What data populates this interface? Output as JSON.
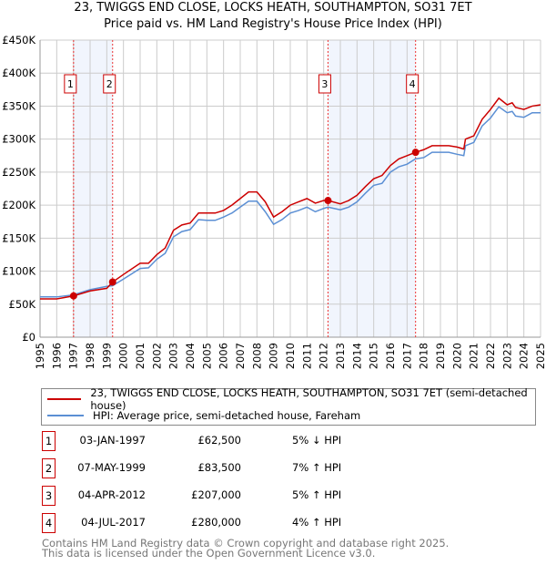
{
  "chart_data": {
    "type": "line",
    "title": "23, TWIGGS END CLOSE, LOCKS HEATH, SOUTHAMPTON, SO31 7ET",
    "subtitle": "Price paid vs. HM Land Registry's House Price Index (HPI)",
    "xlim": [
      1995,
      2025
    ],
    "ylim": [
      0,
      450000
    ],
    "grid": true,
    "x_ticks": [
      "1995",
      "1996",
      "1997",
      "1998",
      "1999",
      "2000",
      "2001",
      "2002",
      "2003",
      "2004",
      "2005",
      "2006",
      "2007",
      "2008",
      "2009",
      "2010",
      "2011",
      "2012",
      "2013",
      "2014",
      "2015",
      "2016",
      "2017",
      "2018",
      "2019",
      "2020",
      "2021",
      "2022",
      "2023",
      "2024",
      "2025"
    ],
    "y_ticks": [
      {
        "value": 0,
        "label": "£0"
      },
      {
        "value": 50000,
        "label": "£50K"
      },
      {
        "value": 100000,
        "label": "£100K"
      },
      {
        "value": 150000,
        "label": "£150K"
      },
      {
        "value": 200000,
        "label": "£200K"
      },
      {
        "value": 250000,
        "label": "£250K"
      },
      {
        "value": 300000,
        "label": "£300K"
      },
      {
        "value": 350000,
        "label": "£350K"
      },
      {
        "value": 400000,
        "label": "£400K"
      },
      {
        "value": 450000,
        "label": "£450K"
      }
    ],
    "x": [
      1995,
      1996,
      1997,
      1998,
      1999,
      1999.35,
      2000,
      2001,
      2001.5,
      2002,
      2002.5,
      2003,
      2003.5,
      2004,
      2004.5,
      2005,
      2005.5,
      2006,
      2006.5,
      2007,
      2007.5,
      2008,
      2008.5,
      2009,
      2009.5,
      2010,
      2010.5,
      2011,
      2011.5,
      2012,
      2012.26,
      2013,
      2013.5,
      2014,
      2014.5,
      2015,
      2015.5,
      2016,
      2016.5,
      2017,
      2017.5,
      2018,
      2018.5,
      2019,
      2019.5,
      2020,
      2020.4,
      2020.5,
      2021,
      2021.5,
      2022,
      2022.5,
      2023,
      2023.3,
      2023.5,
      2024,
      2024.5,
      2025
    ],
    "series": [
      {
        "name": "23, TWIGGS END CLOSE, LOCKS HEATH, SOUTHAMPTON, SO31 7ET (semi-detached house)",
        "color": "#cc0000",
        "values": [
          58000,
          58000,
          62500,
          70000,
          74000,
          83500,
          95000,
          112000,
          112000,
          125000,
          135000,
          162000,
          170000,
          173000,
          188000,
          188000,
          188000,
          192000,
          200000,
          210000,
          220000,
          220000,
          205000,
          182000,
          190000,
          200000,
          205000,
          210000,
          203000,
          207000,
          207000,
          202000,
          207000,
          215000,
          228000,
          240000,
          245000,
          260000,
          270000,
          275000,
          280000,
          284000,
          290000,
          290000,
          290000,
          288000,
          285000,
          300000,
          305000,
          330000,
          345000,
          362000,
          352000,
          355000,
          348000,
          345000,
          350000,
          352000
        ]
      },
      {
        "name": "HPI: Average price, semi-detached house, Fareham",
        "color": "#5b8fd4",
        "values": [
          61000,
          61000,
          64000,
          72000,
          77000,
          78000,
          88000,
          104000,
          105000,
          118000,
          127000,
          152000,
          160000,
          163000,
          178000,
          177000,
          177000,
          182000,
          188000,
          197000,
          206000,
          206000,
          190000,
          171000,
          178000,
          188000,
          192000,
          197000,
          190000,
          195000,
          197000,
          193000,
          197000,
          205000,
          218000,
          230000,
          233000,
          250000,
          258000,
          262000,
          270000,
          272000,
          280000,
          280000,
          280000,
          277000,
          275000,
          290000,
          295000,
          320000,
          332000,
          349000,
          340000,
          342000,
          335000,
          333000,
          340000,
          340000
        ]
      }
    ],
    "sales": [
      {
        "id": "1",
        "x": 1997.01,
        "value": 62500,
        "date": "03-JAN-1997",
        "price": "£62,500",
        "hpi": "5% ↓ HPI"
      },
      {
        "id": "2",
        "x": 1999.35,
        "value": 83500,
        "date": "07-MAY-1999",
        "price": "£83,500",
        "hpi": "7% ↑ HPI"
      },
      {
        "id": "3",
        "x": 2012.26,
        "value": 207000,
        "date": "04-APR-2012",
        "price": "£207,000",
        "hpi": "5% ↑ HPI"
      },
      {
        "id": "4",
        "x": 2017.51,
        "value": 280000,
        "date": "04-JUL-2017",
        "price": "£280,000",
        "hpi": "4% ↑ HPI"
      }
    ],
    "shaded_ranges": [
      [
        1997.01,
        1999.35
      ],
      [
        2012.26,
        2017.51
      ]
    ],
    "legend_placement": "bottom"
  },
  "footer": {
    "line1": "Contains HM Land Registry data © Crown copyright and database right 2025.",
    "line2": "This data is licensed under the Open Government Licence v3.0."
  }
}
